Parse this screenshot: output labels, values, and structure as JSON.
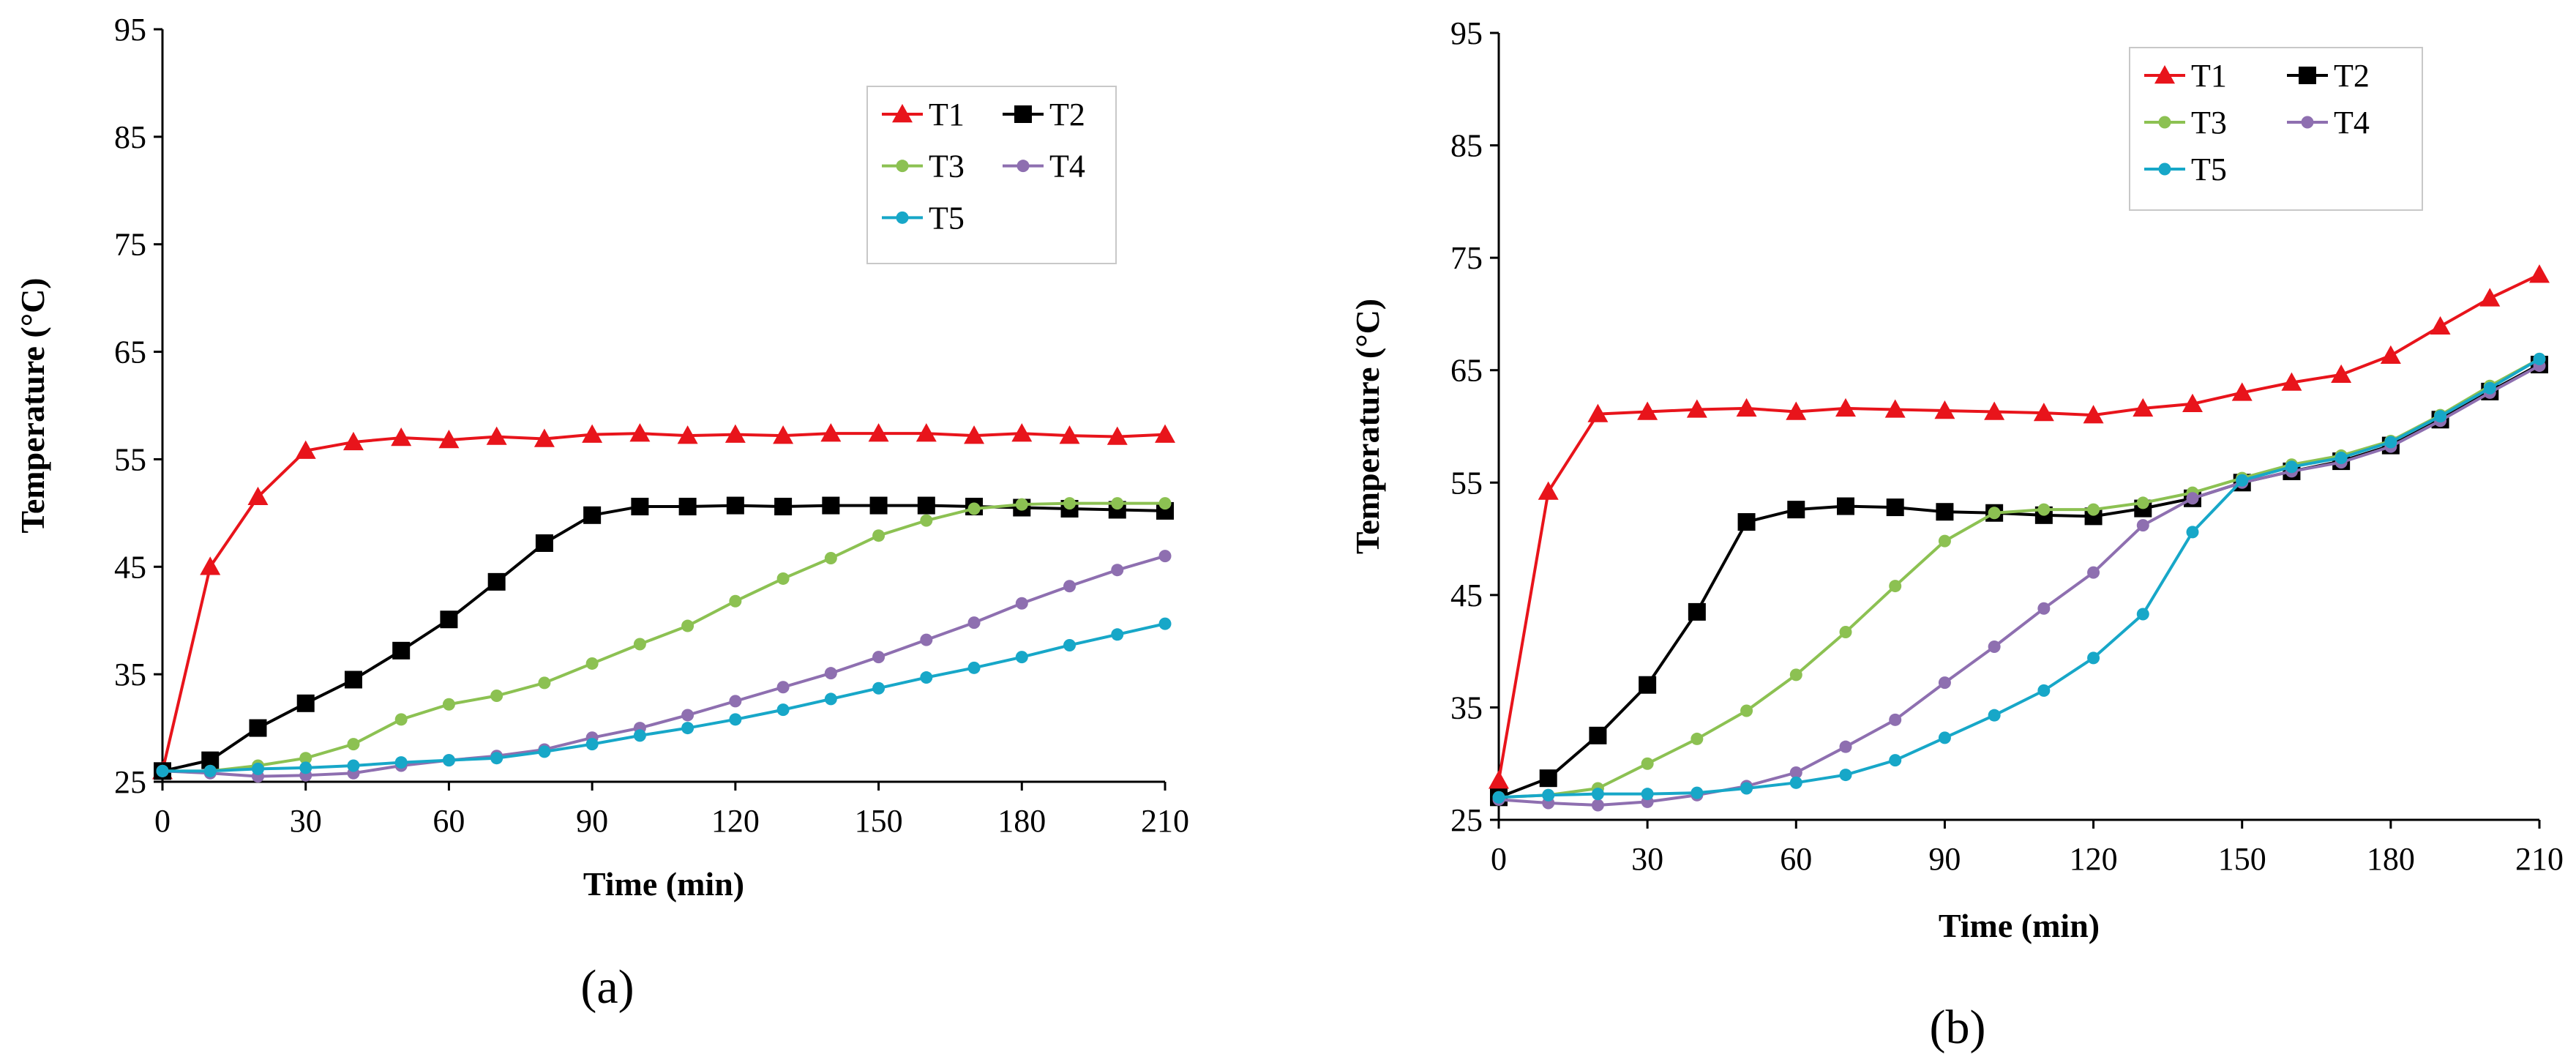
{
  "figure": {
    "panel_labels": [
      "(a)",
      "(b)"
    ]
  },
  "chart_data": [
    {
      "type": "line",
      "panel": "(a)",
      "xlabel": "Time (min)",
      "ylabel": "Temperature (°C)",
      "xlim": [
        0,
        210
      ],
      "ylim": [
        25,
        95
      ],
      "xticks": [
        0,
        30,
        60,
        90,
        120,
        150,
        180,
        210
      ],
      "yticks": [
        25,
        35,
        45,
        55,
        65,
        75,
        85,
        95
      ],
      "x": [
        0,
        10,
        20,
        30,
        40,
        50,
        60,
        70,
        80,
        90,
        100,
        110,
        120,
        130,
        140,
        150,
        160,
        170,
        180,
        190,
        200,
        210
      ],
      "grid": false,
      "legend": "top-right",
      "series": [
        {
          "name": "T1",
          "color": "#e8141b",
          "marker": "triangle",
          "values": [
            26.0,
            45.0,
            51.5,
            55.8,
            56.6,
            57.0,
            56.8,
            57.1,
            56.9,
            57.3,
            57.4,
            57.2,
            57.3,
            57.2,
            57.4,
            57.4,
            57.4,
            57.2,
            57.4,
            57.2,
            57.1,
            57.3
          ]
        },
        {
          "name": "T2",
          "color": "#000000",
          "marker": "square",
          "values": [
            26.0,
            27.0,
            30.0,
            32.3,
            34.5,
            37.2,
            40.1,
            43.6,
            47.2,
            49.8,
            50.6,
            50.6,
            50.7,
            50.6,
            50.7,
            50.7,
            50.7,
            50.6,
            50.5,
            50.4,
            50.3,
            50.2
          ]
        },
        {
          "name": "T3",
          "color": "#8cc152",
          "marker": "circle",
          "values": [
            26.0,
            26.0,
            26.5,
            27.2,
            28.5,
            30.8,
            32.2,
            33.0,
            34.2,
            36.0,
            37.8,
            39.5,
            41.8,
            43.9,
            45.8,
            47.9,
            49.3,
            50.4,
            50.8,
            50.9,
            50.9,
            50.9
          ]
        },
        {
          "name": "T4",
          "color": "#8e6fb0",
          "marker": "circle",
          "values": [
            26.0,
            25.8,
            25.5,
            25.6,
            25.8,
            26.5,
            27.0,
            27.4,
            28.0,
            29.1,
            30.0,
            31.2,
            32.5,
            33.8,
            35.1,
            36.6,
            38.2,
            39.8,
            41.6,
            43.2,
            44.7,
            46.0
          ]
        },
        {
          "name": "T5",
          "color": "#17a7c8",
          "marker": "circle",
          "values": [
            26.0,
            26.0,
            26.2,
            26.3,
            26.5,
            26.8,
            27.0,
            27.2,
            27.8,
            28.5,
            29.3,
            30.0,
            30.8,
            31.7,
            32.7,
            33.7,
            34.7,
            35.6,
            36.6,
            37.7,
            38.7,
            39.7
          ]
        }
      ]
    },
    {
      "type": "line",
      "panel": "(b)",
      "xlabel": "Time (min)",
      "ylabel": "Temperature (°C)",
      "xlim": [
        0,
        210
      ],
      "ylim": [
        25,
        95
      ],
      "xticks": [
        0,
        30,
        60,
        90,
        120,
        150,
        180,
        210
      ],
      "yticks": [
        25,
        35,
        45,
        55,
        65,
        75,
        85,
        95
      ],
      "x": [
        0,
        10,
        20,
        30,
        40,
        50,
        60,
        70,
        80,
        90,
        100,
        110,
        120,
        130,
        140,
        150,
        160,
        170,
        180,
        190,
        200,
        210
      ],
      "grid": false,
      "legend": "top-right",
      "series": [
        {
          "name": "T1",
          "color": "#e8141b",
          "marker": "triangle",
          "values": [
            28.5,
            54.2,
            61.1,
            61.3,
            61.5,
            61.6,
            61.3,
            61.6,
            61.5,
            61.4,
            61.3,
            61.2,
            61.0,
            61.6,
            62.0,
            63.0,
            63.9,
            64.6,
            66.3,
            68.9,
            71.4,
            73.5
          ]
        },
        {
          "name": "T2",
          "color": "#000000",
          "marker": "square",
          "values": [
            27.0,
            28.7,
            32.5,
            37.0,
            43.5,
            51.5,
            52.6,
            52.9,
            52.8,
            52.4,
            52.3,
            52.1,
            52.0,
            52.7,
            53.6,
            55.0,
            56.0,
            56.9,
            58.3,
            60.6,
            63.1,
            65.5
          ]
        },
        {
          "name": "T3",
          "color": "#8cc152",
          "marker": "circle",
          "values": [
            27.0,
            27.2,
            27.8,
            30.0,
            32.2,
            34.7,
            37.9,
            41.7,
            45.8,
            49.8,
            52.3,
            52.6,
            52.6,
            53.2,
            54.1,
            55.4,
            56.6,
            57.4,
            58.7,
            61.0,
            63.6,
            66.0
          ]
        },
        {
          "name": "T4",
          "color": "#8e6fb0",
          "marker": "circle",
          "values": [
            26.8,
            26.5,
            26.3,
            26.6,
            27.2,
            28.0,
            29.2,
            31.5,
            33.9,
            37.2,
            40.4,
            43.8,
            47.0,
            51.2,
            53.6,
            55.0,
            56.0,
            56.8,
            58.2,
            60.5,
            63.0,
            65.4
          ]
        },
        {
          "name": "T5",
          "color": "#17a7c8",
          "marker": "circle",
          "values": [
            27.0,
            27.2,
            27.3,
            27.3,
            27.4,
            27.8,
            28.3,
            29.0,
            30.3,
            32.3,
            34.3,
            36.5,
            39.4,
            43.3,
            50.6,
            55.2,
            56.4,
            57.2,
            58.6,
            60.9,
            63.4,
            66.0
          ]
        }
      ]
    }
  ]
}
